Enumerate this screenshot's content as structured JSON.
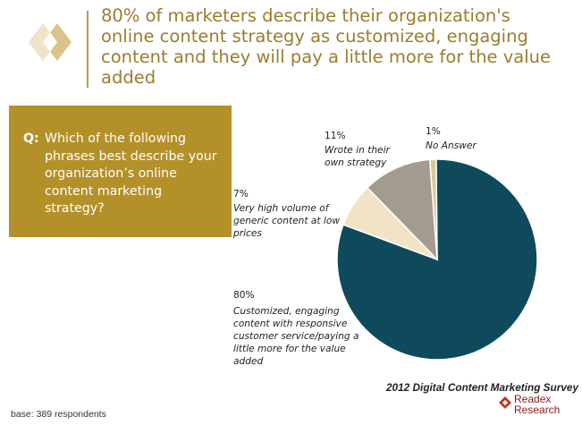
{
  "header": {
    "title": "80% of marketers describe their organization's online content strategy as customized, engaging content and they will pay a little more for the value added"
  },
  "question": {
    "label": "Q:",
    "text": "Which of the following phrases best describe your organization’s online content marketing strategy?"
  },
  "chart_data": {
    "type": "pie",
    "slices": [
      {
        "label_lines": [
          "Customized, engaging",
          "content with responsive",
          "customer service/paying a",
          "little more for the value",
          "added"
        ],
        "value": 80,
        "value_label": "80%",
        "color": "#0e4a5c"
      },
      {
        "label_lines": [
          "Very high volume of",
          "generic content at low",
          "prices"
        ],
        "value": 7,
        "value_label": "7%",
        "color": "#f2e3c4"
      },
      {
        "label_lines": [
          "Wrote in their",
          "own strategy"
        ],
        "value": 11,
        "value_label": "11%",
        "color": "#a39a90"
      },
      {
        "label_lines": [
          "No Answer"
        ],
        "value": 1,
        "value_label": "1%",
        "color": "#d9c89a"
      }
    ]
  },
  "footer": {
    "survey_title": "2012 Digital Content Marketing Survey",
    "base": "base:  389 respondents",
    "brand_line1": "Readex",
    "brand_line2": "Research"
  },
  "colors": {
    "gold": "#b49029",
    "headline": "#9a7d2e",
    "brand": "#8a1a1a"
  }
}
